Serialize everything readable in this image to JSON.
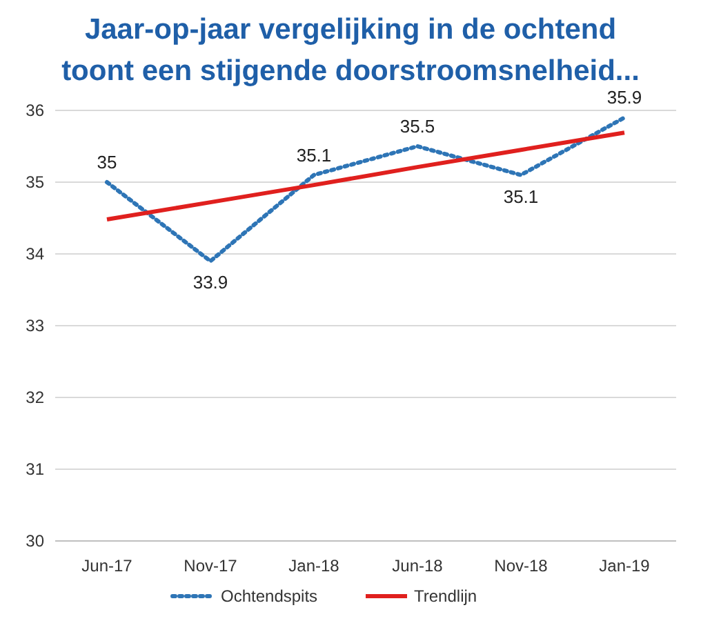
{
  "chart_data": {
    "type": "line",
    "title": "Jaar-op-jaar vergelijking in de ochtend\ntoont een stijgende doorstroomsnelheid...",
    "categories": [
      "Jun-17",
      "Nov-17",
      "Jan-18",
      "Jun-18",
      "Nov-18",
      "Jan-19"
    ],
    "series": [
      {
        "name": "Ochtendspits",
        "color": "#2e75b6",
        "values": [
          35,
          33.9,
          35.1,
          35.5,
          35.1,
          35.9
        ],
        "line_style": "dotted",
        "value_labels": [
          "35",
          "33.9",
          "35.1",
          "35.5",
          "35.1",
          "35.9"
        ]
      },
      {
        "name": "Trendlijn",
        "color": "#e0201e",
        "values": [
          34.48,
          34.72,
          34.96,
          35.21,
          35.45,
          35.69
        ],
        "line_style": "solid"
      }
    ],
    "ylim": [
      30,
      36
    ],
    "yticks": [
      30,
      31,
      32,
      33,
      34,
      35,
      36
    ],
    "grid": "y",
    "legend": "bottom",
    "marker": "none"
  }
}
